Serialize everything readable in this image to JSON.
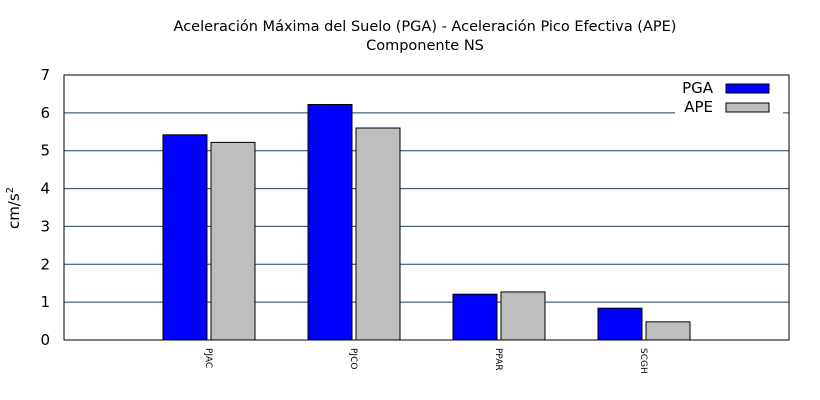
{
  "chart_data": {
    "type": "bar",
    "title": "Aceleración Máxima del Suelo (PGA) -  Aceleración Pico Efectiva (APE)",
    "subtitle": "Componente NS",
    "ylabel": "cm/s",
    "ylabel_sup": "2",
    "xlabel": "",
    "categories": [
      "PJAC",
      "PJCO",
      "PPAR",
      "SCGH"
    ],
    "ylim": [
      0,
      7
    ],
    "yticks": [
      "0",
      "1",
      "2",
      "3",
      "4",
      "5",
      "6",
      "7"
    ],
    "grid": true,
    "legend_position": "top-right",
    "series": [
      {
        "name": "PGA",
        "color": "#0000ff",
        "values": [
          5.42,
          6.22,
          1.21,
          0.84
        ]
      },
      {
        "name": "APE",
        "color": "#bebebe",
        "values": [
          5.22,
          5.6,
          1.27,
          0.48
        ]
      }
    ]
  }
}
